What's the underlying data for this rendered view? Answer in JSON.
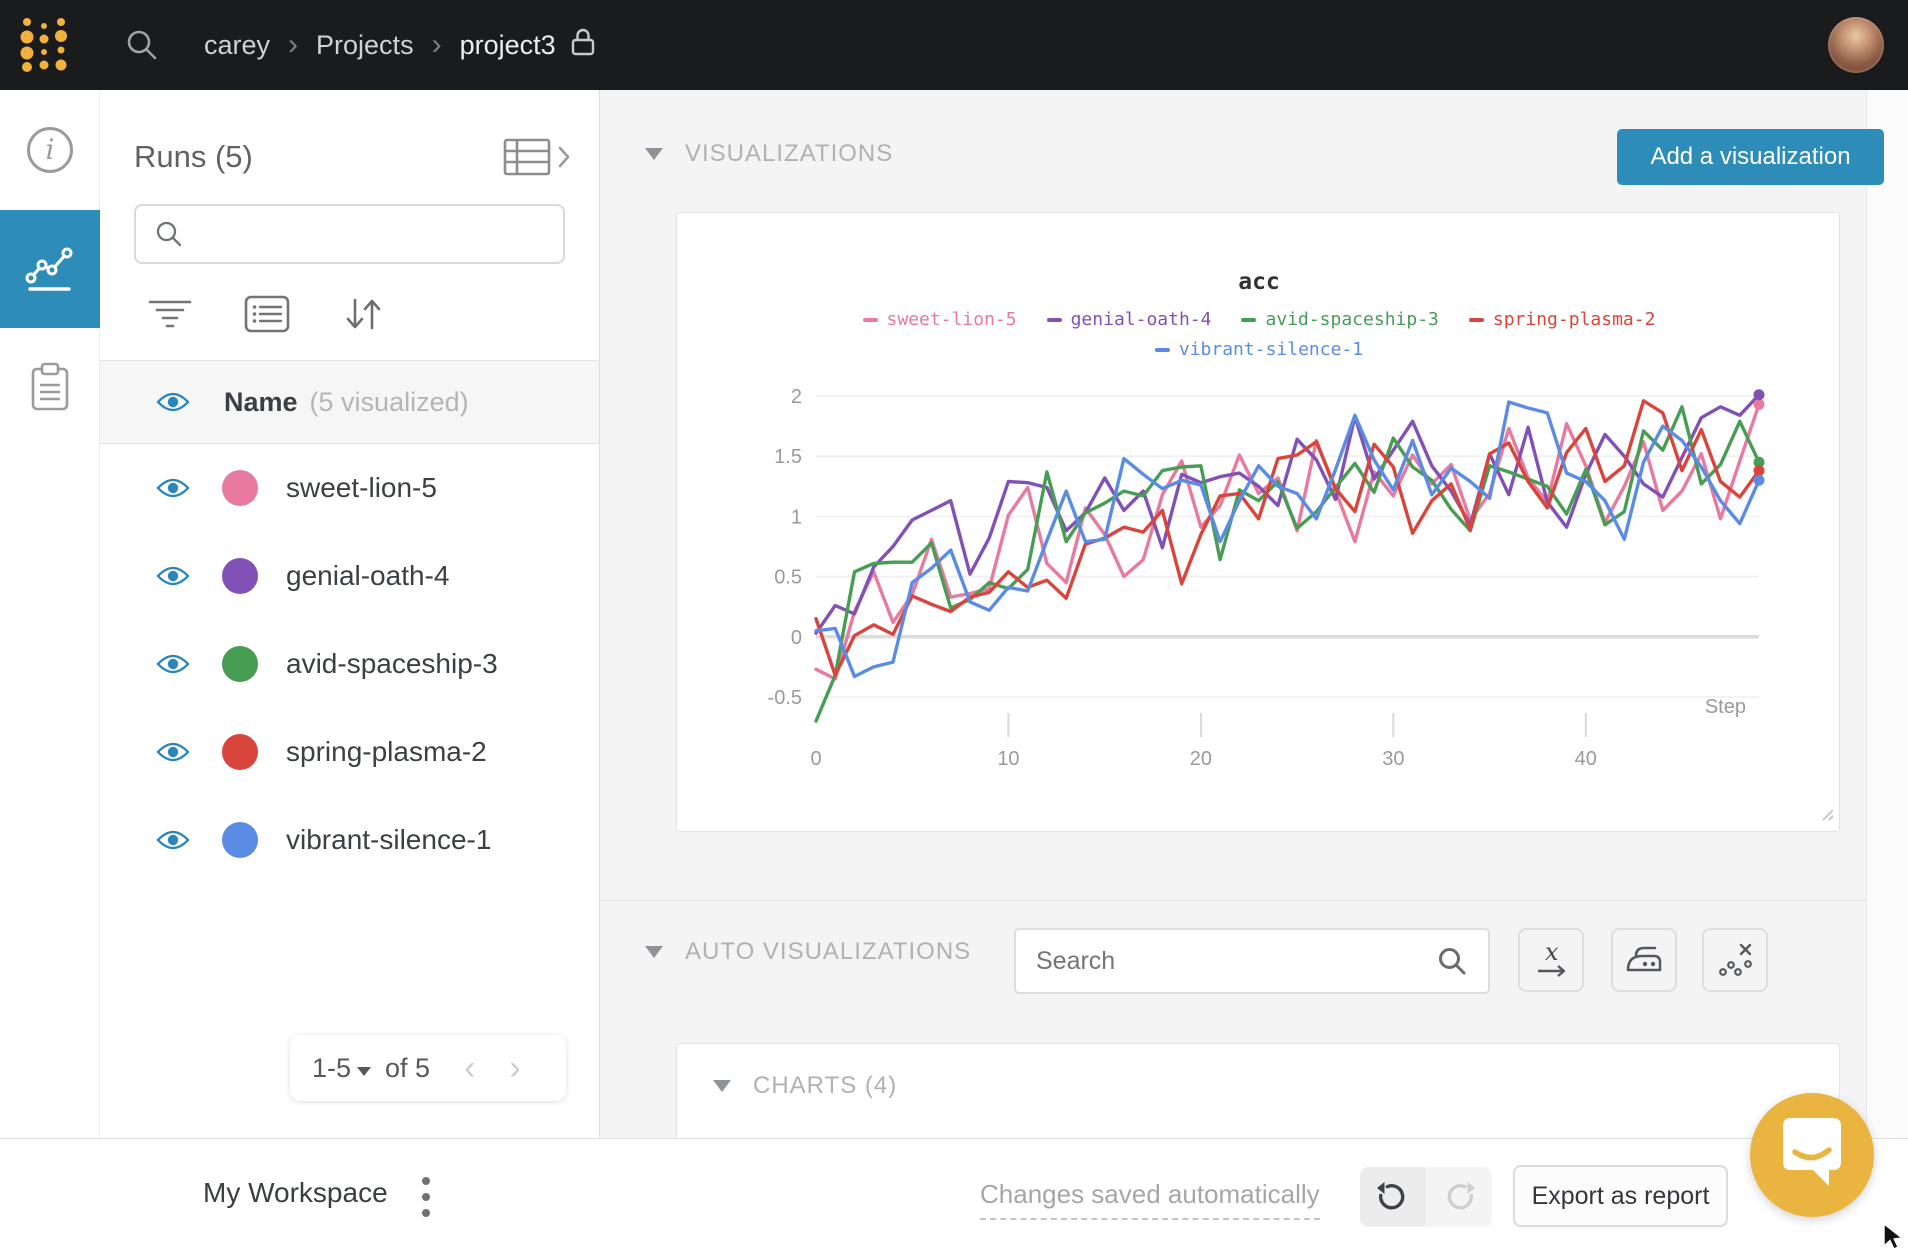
{
  "colors": {
    "accent_blue": "#2e8cb8",
    "logo_yellow": "#f0b23c",
    "chat_yellow": "#eab440",
    "eye_blue": "#2a85bd",
    "navbar_bg": "#1a1b1d"
  },
  "navbar": {
    "breadcrumb": [
      "carey",
      "Projects",
      "project3"
    ]
  },
  "runs_panel": {
    "title": "Runs (5)",
    "search_placeholder": "",
    "header_row": {
      "name": "Name",
      "count_label": "(5 visualized)"
    },
    "runs": [
      {
        "name": "sweet-lion-5",
        "color": "#e87a9f"
      },
      {
        "name": "genial-oath-4",
        "color": "#8251b5"
      },
      {
        "name": "avid-spaceship-3",
        "color": "#479d54"
      },
      {
        "name": "spring-plasma-2",
        "color": "#d9453c"
      },
      {
        "name": "vibrant-silence-1",
        "color": "#5a8ce6"
      }
    ],
    "pagination": {
      "range_label": "1-5",
      "of_label": "of 5"
    }
  },
  "viz": {
    "section_title": "VISUALIZATIONS",
    "add_button_label": "Add a visualization"
  },
  "chart_data": {
    "type": "line",
    "title": "acc",
    "xlabel": "Step",
    "x_ticks": [
      0,
      10,
      20,
      30,
      40
    ],
    "y_ticks": [
      2,
      1.5,
      1,
      0.5,
      0,
      -0.5
    ],
    "ylim": [
      -0.75,
      2.15
    ],
    "xlim": [
      0,
      49
    ],
    "grid": true,
    "legend_position": "top",
    "series": [
      {
        "name": "sweet-lion-5",
        "color": "#e87a9f",
        "values": [
          -0.27,
          -0.35,
          0.21,
          0.54,
          0.12,
          0.35,
          0.81,
          0.33,
          0.36,
          0.4,
          1.01,
          1.24,
          0.61,
          0.45,
          1.07,
          0.85,
          0.5,
          0.64,
          1.18,
          1.46,
          0.91,
          1.09,
          1.51,
          1.19,
          1.32,
          0.88,
          1.63,
          1.21,
          0.79,
          1.37,
          1.17,
          1.51,
          1.27,
          1.43,
          0.97,
          1.19,
          1.73,
          1.32,
          1.12,
          1.77,
          1.42,
          0.95,
          1.25,
          1.62,
          1.05,
          1.21,
          1.52,
          0.98,
          1.46,
          1.93
        ]
      },
      {
        "name": "genial-oath-4",
        "color": "#8251b5",
        "values": [
          0.03,
          0.26,
          0.19,
          0.58,
          0.75,
          0.97,
          1.05,
          1.13,
          0.52,
          0.82,
          1.29,
          1.28,
          1.24,
          0.88,
          1.03,
          1.32,
          1.05,
          1.21,
          0.74,
          1.35,
          1.28,
          1.33,
          1.36,
          1.25,
          1.09,
          1.64,
          1.47,
          1.14,
          1.83,
          1.31,
          1.55,
          1.79,
          1.42,
          1.21,
          0.93,
          1.52,
          1.18,
          1.74,
          1.12,
          0.91,
          1.35,
          1.68,
          1.5,
          1.27,
          1.16,
          1.49,
          1.82,
          1.91,
          1.84,
          2.01
        ]
      },
      {
        "name": "avid-spaceship-3",
        "color": "#479d54",
        "values": [
          -0.7,
          -0.32,
          0.54,
          0.61,
          0.62,
          0.62,
          0.78,
          0.24,
          0.31,
          0.45,
          0.4,
          0.56,
          1.37,
          0.79,
          1.03,
          1.11,
          1.21,
          1.17,
          1.38,
          1.41,
          1.42,
          0.64,
          1.22,
          1.13,
          1.29,
          0.9,
          1.04,
          1.24,
          1.44,
          1.2,
          1.65,
          1.41,
          1.3,
          1.06,
          0.88,
          1.42,
          1.37,
          1.31,
          1.25,
          1.02,
          1.39,
          0.93,
          1.04,
          1.71,
          1.55,
          1.91,
          1.27,
          1.43,
          1.79,
          1.45
        ]
      },
      {
        "name": "spring-plasma-2",
        "color": "#d9453c",
        "values": [
          0.15,
          -0.32,
          0.01,
          0.1,
          0.02,
          0.34,
          0.27,
          0.21,
          0.33,
          0.37,
          0.54,
          0.41,
          0.47,
          0.32,
          0.77,
          0.82,
          0.91,
          0.87,
          1.05,
          0.44,
          0.85,
          1.17,
          1.19,
          0.98,
          1.48,
          1.51,
          1.62,
          1.23,
          1.04,
          1.6,
          1.41,
          0.86,
          1.13,
          1.27,
          0.89,
          1.52,
          1.61,
          1.29,
          1.07,
          1.53,
          1.73,
          1.29,
          1.42,
          1.96,
          1.86,
          1.38,
          1.72,
          1.29,
          1.16,
          1.38
        ]
      },
      {
        "name": "vibrant-silence-1",
        "color": "#5a8ce6",
        "values": [
          0.05,
          0.07,
          -0.33,
          -0.25,
          -0.21,
          0.45,
          0.57,
          0.72,
          0.29,
          0.22,
          0.41,
          0.38,
          0.8,
          1.21,
          0.79,
          0.81,
          1.48,
          1.35,
          1.23,
          1.3,
          1.26,
          0.79,
          1.13,
          1.42,
          1.25,
          1.19,
          0.98,
          1.39,
          1.84,
          1.47,
          1.22,
          1.63,
          1.18,
          1.4,
          1.29,
          1.15,
          1.95,
          1.9,
          1.86,
          1.36,
          1.29,
          1.13,
          0.81,
          1.45,
          1.75,
          1.63,
          1.41,
          1.13,
          0.94,
          1.3
        ]
      }
    ]
  },
  "autoviz": {
    "section_title": "AUTO VISUALIZATIONS",
    "search_placeholder": "Search"
  },
  "charts_section": {
    "title": "CHARTS (4)"
  },
  "footer": {
    "workspace_label": "My Workspace",
    "saved_label": "Changes saved automatically",
    "export_label": "Export as report"
  },
  "icons": {
    "rail": [
      "info-icon",
      "line-chart-icon",
      "notes-icon"
    ],
    "runs_tools": [
      "filter-icon",
      "list-icon",
      "sort-icon"
    ],
    "autoviz_tools": [
      "x-axis-icon",
      "smoothing-iron-icon",
      "outliers-icon"
    ]
  }
}
